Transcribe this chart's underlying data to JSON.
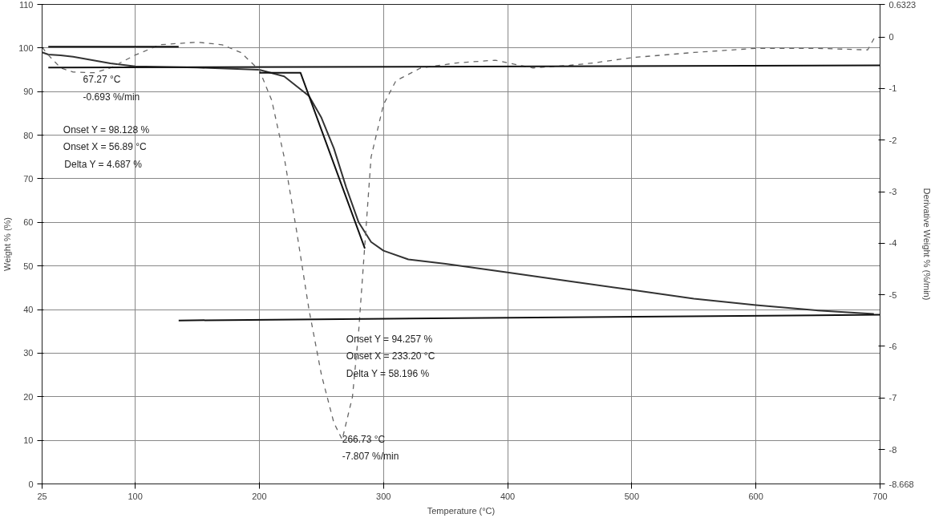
{
  "chart_data": {
    "type": "line",
    "xlabel": "Temperature (°C)",
    "ylabel": "Weight % (%)",
    "y2label": "Derivative Weight % (%/min)",
    "xlim": [
      25,
      700
    ],
    "xticks": [
      25,
      100,
      200,
      300,
      400,
      500,
      600,
      700
    ],
    "ylim": [
      0,
      110
    ],
    "yticks": [
      0,
      10,
      20,
      30,
      40,
      50,
      60,
      70,
      80,
      90,
      100,
      110
    ],
    "y2lim": [
      -8.668,
      0.6323
    ],
    "y2ticks": [
      0.6323,
      0,
      -1,
      -2,
      -3,
      -4,
      -5,
      -6,
      -7,
      -8,
      -8.668
    ],
    "grid": true,
    "series": [
      {
        "color": "#333333",
        "line_style": "solid",
        "x": [
          25,
          30,
          40,
          50,
          60,
          70,
          80,
          100,
          150,
          200,
          220,
          240,
          250,
          260,
          270,
          280,
          290,
          300,
          320,
          350,
          400,
          450,
          500,
          550,
          600,
          650,
          695
        ],
        "values": [
          99,
          98.5,
          98.3,
          98,
          97.5,
          97,
          96.5,
          95.8,
          95.5,
          95,
          93.5,
          89,
          84,
          77,
          68,
          60,
          55.5,
          53.5,
          51.5,
          50.5,
          48.5,
          46.5,
          44.5,
          42.5,
          41,
          39.8,
          39
        ]
      },
      {
        "color": "#666666",
        "line_style": "dashed",
        "axis": "y2",
        "x": [
          25,
          30,
          40,
          50,
          67.27,
          80,
          100,
          120,
          150,
          170,
          185,
          200,
          210,
          220,
          230,
          240,
          250,
          260,
          266.73,
          275,
          280,
          285,
          290,
          300,
          310,
          330,
          360,
          390,
          420,
          450,
          470,
          500,
          550,
          600,
          650,
          690,
          697
        ],
        "values": [
          -0.2,
          -0.35,
          -0.6,
          -0.68,
          -0.693,
          -0.6,
          -0.35,
          -0.15,
          -0.1,
          -0.15,
          -0.3,
          -0.64,
          -1.23,
          -2.33,
          -3.76,
          -5.29,
          -6.55,
          -7.48,
          -7.807,
          -6.98,
          -5.71,
          -4.02,
          -2.33,
          -1.31,
          -0.85,
          -0.6,
          -0.5,
          -0.45,
          -0.6,
          -0.55,
          -0.5,
          -0.4,
          -0.3,
          -0.22,
          -0.22,
          -0.25,
          0.05
        ]
      },
      {
        "color": "#111111",
        "line_style": "solid",
        "x": [
          30,
          135
        ],
        "values": [
          100.3,
          100.3
        ]
      },
      {
        "color": "#111111",
        "line_style": "solid",
        "x": [
          30,
          700
        ],
        "values": [
          95.5,
          96
        ]
      },
      {
        "color": "#111111",
        "line_style": "solid",
        "x": [
          200,
          233.2,
          285
        ],
        "values": [
          94.3,
          94.3,
          54
        ]
      },
      {
        "color": "#111111",
        "line_style": "solid",
        "x": [
          135,
          700
        ],
        "values": [
          37.5,
          38.8
        ]
      }
    ],
    "annotations": [
      "67.27 °C",
      "-0.693 %/min",
      "Onset Y = 98.128 %",
      "Onset X = 56.89 °C",
      "Delta Y = 4.687 %",
      "Onset Y = 94.257 %",
      "Onset X = 233.20 °C",
      "Delta Y = 58.196 %",
      "266.73 °C",
      "-7.807 %/min"
    ]
  }
}
